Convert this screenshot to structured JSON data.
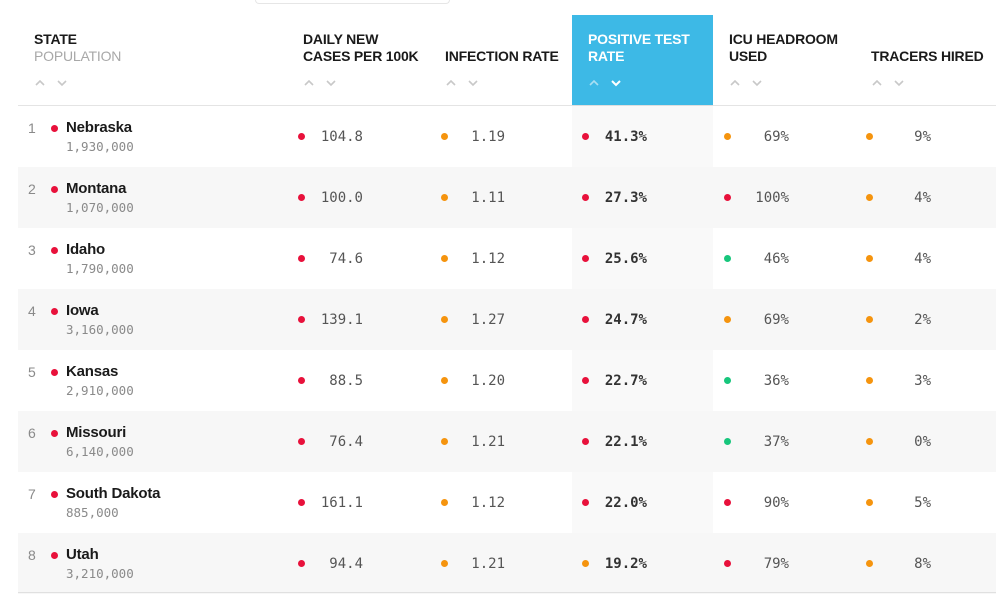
{
  "header": {
    "state_label": "State",
    "state_sub": "Population",
    "daily_cases_label_1": "Daily New",
    "daily_cases_label_2": "Cases per 100k",
    "infection_rate_label": "Infection Rate",
    "positive_test_label_1": "Positive Test",
    "positive_test_label_2": "Rate",
    "icu_label_1": "ICU Headroom",
    "icu_label_2": "Used",
    "tracers_label": "Tracers Hired"
  },
  "colors": {
    "red": "#e8113b",
    "orange": "#f5940e",
    "green": "#17c67c",
    "active_column": "#3db9e6"
  },
  "rows": [
    {
      "rank": "1",
      "state": "Nebraska",
      "population": "1,930,000",
      "state_status": "red",
      "daily_cases": "104.8",
      "daily_status": "red",
      "infection_rate": "1.19",
      "infection_status": "orange",
      "positive_rate": "41.3%",
      "positive_status": "red",
      "icu": "69%",
      "icu_status": "orange",
      "tracers": "9%",
      "tracers_status": "orange"
    },
    {
      "rank": "2",
      "state": "Montana",
      "population": "1,070,000",
      "state_status": "red",
      "daily_cases": "100.0",
      "daily_status": "red",
      "infection_rate": "1.11",
      "infection_status": "orange",
      "positive_rate": "27.3%",
      "positive_status": "red",
      "icu": "100%",
      "icu_status": "red",
      "tracers": "4%",
      "tracers_status": "orange"
    },
    {
      "rank": "3",
      "state": "Idaho",
      "population": "1,790,000",
      "state_status": "red",
      "daily_cases": "74.6",
      "daily_status": "red",
      "infection_rate": "1.12",
      "infection_status": "orange",
      "positive_rate": "25.6%",
      "positive_status": "red",
      "icu": "46%",
      "icu_status": "green",
      "tracers": "4%",
      "tracers_status": "orange"
    },
    {
      "rank": "4",
      "state": "Iowa",
      "population": "3,160,000",
      "state_status": "red",
      "daily_cases": "139.1",
      "daily_status": "red",
      "infection_rate": "1.27",
      "infection_status": "orange",
      "positive_rate": "24.7%",
      "positive_status": "red",
      "icu": "69%",
      "icu_status": "orange",
      "tracers": "2%",
      "tracers_status": "orange"
    },
    {
      "rank": "5",
      "state": "Kansas",
      "population": "2,910,000",
      "state_status": "red",
      "daily_cases": "88.5",
      "daily_status": "red",
      "infection_rate": "1.20",
      "infection_status": "orange",
      "positive_rate": "22.7%",
      "positive_status": "red",
      "icu": "36%",
      "icu_status": "green",
      "tracers": "3%",
      "tracers_status": "orange"
    },
    {
      "rank": "6",
      "state": "Missouri",
      "population": "6,140,000",
      "state_status": "red",
      "daily_cases": "76.4",
      "daily_status": "red",
      "infection_rate": "1.21",
      "infection_status": "orange",
      "positive_rate": "22.1%",
      "positive_status": "red",
      "icu": "37%",
      "icu_status": "green",
      "tracers": "0%",
      "tracers_status": "orange"
    },
    {
      "rank": "7",
      "state": "South Dakota",
      "population": "885,000",
      "state_status": "red",
      "daily_cases": "161.1",
      "daily_status": "red",
      "infection_rate": "1.12",
      "infection_status": "orange",
      "positive_rate": "22.0%",
      "positive_status": "red",
      "icu": "90%",
      "icu_status": "red",
      "tracers": "5%",
      "tracers_status": "orange"
    },
    {
      "rank": "8",
      "state": "Utah",
      "population": "3,210,000",
      "state_status": "red",
      "daily_cases": "94.4",
      "daily_status": "red",
      "infection_rate": "1.21",
      "infection_status": "orange",
      "positive_rate": "19.2%",
      "positive_status": "orange",
      "icu": "79%",
      "icu_status": "red",
      "tracers": "8%",
      "tracers_status": "orange"
    }
  ]
}
